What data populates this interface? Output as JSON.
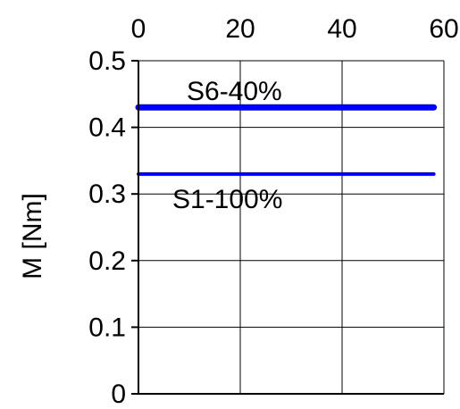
{
  "chart_data": {
    "type": "line",
    "title": "",
    "xlabel": "",
    "ylabel": "M [Nm]",
    "xlim": [
      0,
      60
    ],
    "ylim": [
      0,
      0.5
    ],
    "x_ticks": [
      "0",
      "20",
      "40",
      "60"
    ],
    "y_ticks": [
      "0",
      "0.1",
      "0.2",
      "0.3",
      "0.4",
      "0.5"
    ],
    "x_axis_position": "top",
    "grid": true,
    "series": [
      {
        "name": "S6-40%",
        "x": [
          0,
          58
        ],
        "values": [
          0.43,
          0.43
        ],
        "color": "#0000ff"
      },
      {
        "name": "S1-100%",
        "x": [
          0,
          58
        ],
        "values": [
          0.33,
          0.33
        ],
        "color": "#0000ff"
      }
    ]
  }
}
